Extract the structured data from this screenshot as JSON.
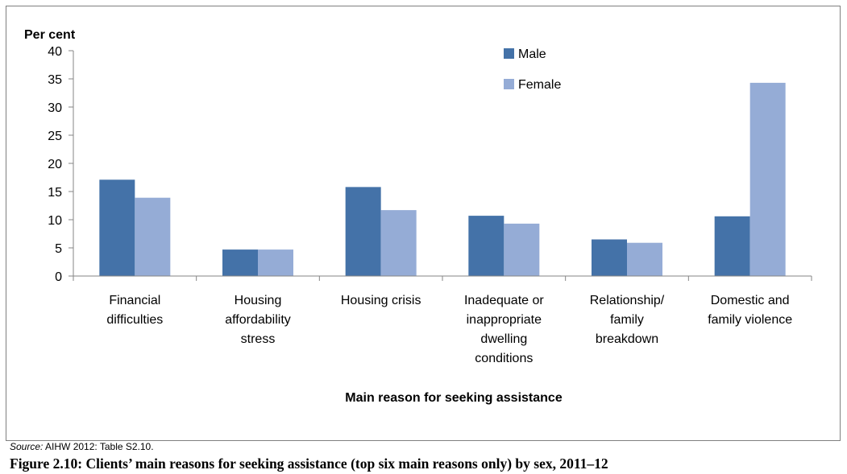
{
  "chart_data": {
    "type": "bar",
    "ylabel": "Per cent",
    "xlabel": "Main reason for seeking assistance",
    "ylim": [
      0,
      40
    ],
    "yticks": [
      0,
      5,
      10,
      15,
      20,
      25,
      30,
      35,
      40
    ],
    "categories": [
      [
        "Financial",
        "difficulties"
      ],
      [
        "Housing",
        "affordability",
        "stress"
      ],
      [
        "Housing crisis"
      ],
      [
        "Inadequate or",
        "inappropriate",
        "dwelling",
        "conditions"
      ],
      [
        "Relationship/",
        "family",
        "breakdown"
      ],
      [
        "Domestic and",
        "family violence"
      ]
    ],
    "series": [
      {
        "name": "Male",
        "color": "#4472a8",
        "values": [
          17.1,
          4.7,
          15.8,
          10.7,
          6.5,
          10.6
        ]
      },
      {
        "name": "Female",
        "color": "#95acd6",
        "values": [
          13.9,
          4.7,
          11.7,
          9.3,
          5.9,
          34.3
        ]
      }
    ],
    "legend_position": "top-center",
    "grid": false
  },
  "source": {
    "label": "Source:",
    "text": " AIHW 2012: Table S2.10."
  },
  "caption": "Figure 2.10: Clients’ main reasons for seeking assistance (top six main reasons only) by sex, 2011–12"
}
